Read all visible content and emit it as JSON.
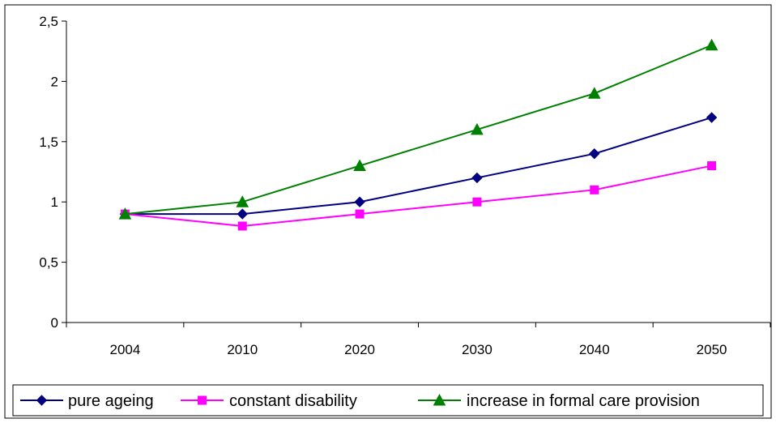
{
  "chart_data": {
    "type": "line",
    "title": "",
    "xlabel": "",
    "ylabel": "",
    "categories": [
      "2004",
      "2010",
      "2020",
      "2030",
      "2040",
      "2050"
    ],
    "ylim": [
      0,
      2.5
    ],
    "yticks": [
      0,
      0.5,
      1,
      1.5,
      2,
      2.5
    ],
    "ytick_labels": [
      "0",
      "0,5",
      "1",
      "1,5",
      "2",
      "2,5"
    ],
    "grid": false,
    "legend_position": "bottom",
    "series": [
      {
        "name": "pure ageing",
        "values": [
          0.9,
          0.9,
          1.0,
          1.2,
          1.4,
          1.7
        ],
        "color": "#000080",
        "marker": "diamond"
      },
      {
        "name": "constant disability",
        "values": [
          0.9,
          0.8,
          0.9,
          1.0,
          1.1,
          1.3
        ],
        "color": "#FF00FF",
        "marker": "square"
      },
      {
        "name": "increase in formal care provision",
        "values": [
          0.9,
          1.0,
          1.3,
          1.6,
          1.9,
          2.3
        ],
        "color": "#008000",
        "marker": "triangle"
      }
    ]
  }
}
